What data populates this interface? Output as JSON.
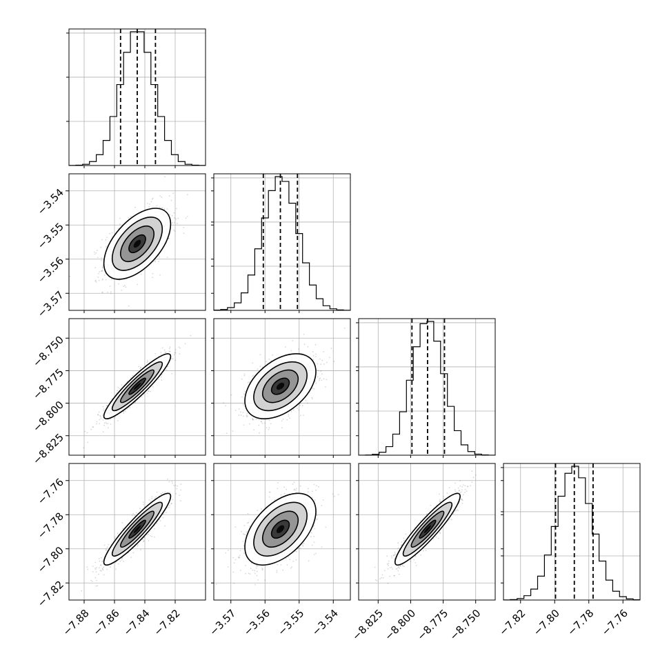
{
  "chart_data": {
    "type": "corner",
    "title": "",
    "n_params": 4,
    "grid": true,
    "parameters": [
      {
        "name": "",
        "mean": -7.845,
        "sigma": 0.011,
        "quantiles": [
          -7.856,
          -7.845,
          -7.833
        ],
        "range": [
          -7.89,
          -7.8
        ],
        "ticks": [
          -7.88,
          -7.86,
          -7.84,
          -7.82
        ],
        "tick_labels": [
          "−7.88",
          "−7.86",
          "−7.84",
          "−7.82"
        ]
      },
      {
        "name": "",
        "mean": -3.5555,
        "sigma": 0.0052,
        "quantiles": [
          -3.5605,
          -3.5555,
          -3.5505
        ],
        "range": [
          -3.575,
          -3.535
        ],
        "ticks": [
          -3.57,
          -3.56,
          -3.55,
          -3.54
        ],
        "tick_labels": [
          "−3.57",
          "−3.56",
          "−3.55",
          "−3.54"
        ]
      },
      {
        "name": "",
        "mean": -8.787,
        "sigma": 0.0125,
        "quantiles": [
          -8.799,
          -8.787,
          -8.774
        ],
        "range": [
          -8.84,
          -8.735
        ],
        "ticks": [
          -8.825,
          -8.8,
          -8.775,
          -8.75
        ],
        "tick_labels": [
          "−8.825",
          "−8.800",
          "−8.775",
          "−8.750"
        ]
      },
      {
        "name": "",
        "mean": -7.7885,
        "sigma": 0.0105,
        "quantiles": [
          -7.7995,
          -7.7885,
          -7.7775
        ],
        "range": [
          -7.83,
          -7.75
        ],
        "ticks": [
          -7.82,
          -7.8,
          -7.78,
          -7.76
        ],
        "tick_labels": [
          "−7.82",
          "−7.80",
          "−7.78",
          "−7.76"
        ]
      }
    ],
    "correlations": [
      [
        0,
        1,
        0.55
      ],
      [
        0,
        2,
        0.92
      ],
      [
        0,
        3,
        0.92
      ],
      [
        1,
        2,
        0.45
      ],
      [
        1,
        3,
        0.5
      ],
      [
        2,
        3,
        0.92
      ]
    ],
    "histogram_bins": 20,
    "contour_levels_sigma": [
      0.5,
      1.0,
      1.5,
      2.0
    ],
    "colors": {
      "line": "#000000",
      "points": "#6e6e6e",
      "grid": "#b0b0b0"
    }
  }
}
